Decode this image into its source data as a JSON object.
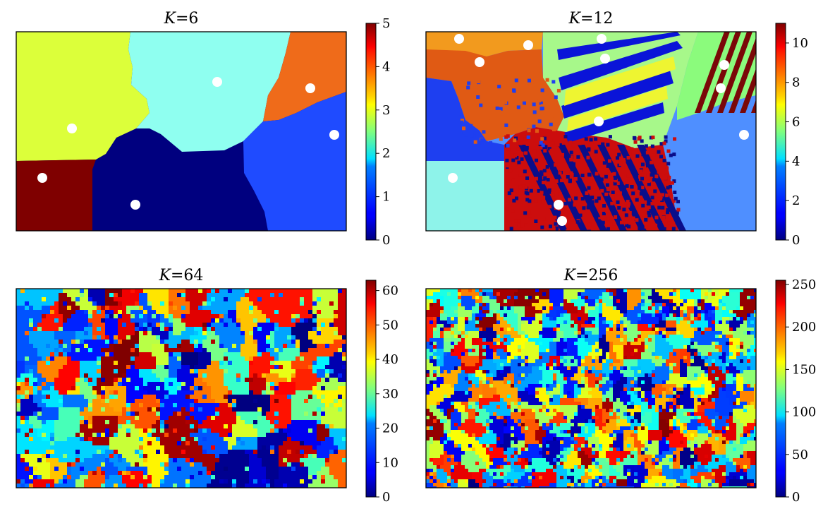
{
  "chart_data": [
    {
      "type": "heatmap",
      "title_var": "K",
      "title_value": "=6",
      "title": "K=6",
      "colormap": "jet",
      "colorbar_range": [
        0,
        5
      ],
      "colorbar_ticks": [
        "0",
        "1",
        "2",
        "3",
        "4",
        "5"
      ],
      "grid": false,
      "regions": [
        {
          "label": 0,
          "description": "lower-middle region",
          "color": "#00007f"
        },
        {
          "label": 1,
          "description": "right-lower region",
          "color": "#1f4bff"
        },
        {
          "label": 2,
          "description": "top-middle region",
          "color": "#8ffff0"
        },
        {
          "label": 3,
          "description": "left-upper region",
          "color": "#dcff3a"
        },
        {
          "label": 4,
          "description": "right-upper region",
          "color": "#ef6b1a"
        },
        {
          "label": 5,
          "description": "bottom-left region",
          "color": "#7f0000"
        }
      ],
      "centers": [
        {
          "x": 0.08,
          "y": 0.73
        },
        {
          "x": 0.17,
          "y": 0.48
        },
        {
          "x": 0.36,
          "y": 0.87
        },
        {
          "x": 0.61,
          "y": 0.25
        },
        {
          "x": 0.89,
          "y": 0.28
        },
        {
          "x": 0.96,
          "y": 0.52
        }
      ]
    },
    {
      "type": "heatmap",
      "title_var": "K",
      "title_value": "=12",
      "title": "K=12",
      "colormap": "jet",
      "colorbar_range": [
        0,
        11
      ],
      "colorbar_ticks": [
        "0",
        "2",
        "4",
        "6",
        "8",
        "10"
      ],
      "grid": false,
      "centers": [
        {
          "x": 0.1,
          "y": 0.03
        },
        {
          "x": 0.16,
          "y": 0.15
        },
        {
          "x": 0.31,
          "y": 0.07
        },
        {
          "x": 0.53,
          "y": 0.03
        },
        {
          "x": 0.54,
          "y": 0.13
        },
        {
          "x": 0.9,
          "y": 0.17
        },
        {
          "x": 0.89,
          "y": 0.28
        },
        {
          "x": 0.52,
          "y": 0.45
        },
        {
          "x": 0.96,
          "y": 0.52
        },
        {
          "x": 0.08,
          "y": 0.73
        },
        {
          "x": 0.4,
          "y": 0.87
        },
        {
          "x": 0.41,
          "y": 0.95
        }
      ]
    },
    {
      "type": "heatmap",
      "title_var": "K",
      "title_value": "=64",
      "title": "K=64",
      "colormap": "jet",
      "colorbar_range": [
        0,
        63
      ],
      "colorbar_ticks": [
        "0",
        "10",
        "20",
        "30",
        "40",
        "50",
        "60"
      ],
      "grid": false
    },
    {
      "type": "heatmap",
      "title_var": "K",
      "title_value": "=256",
      "title": "K=256",
      "colormap": "jet",
      "colorbar_range": [
        0,
        255
      ],
      "colorbar_ticks": [
        "0",
        "50",
        "100",
        "150",
        "200",
        "250"
      ],
      "grid": false
    }
  ]
}
